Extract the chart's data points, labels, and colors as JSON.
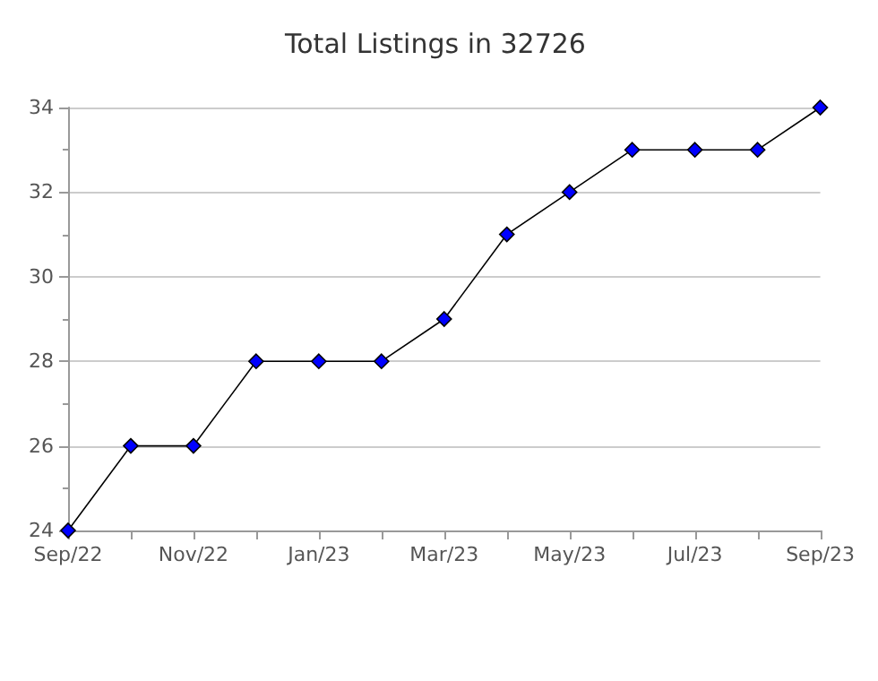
{
  "chart_data": {
    "type": "line",
    "title": "Total Listings in 32726",
    "categories": [
      "Sep/22",
      null,
      "Nov/22",
      null,
      "Jan/23",
      null,
      "Mar/23",
      null,
      "May/23",
      null,
      "Jul/23",
      null,
      "Sep/23"
    ],
    "series": [
      {
        "color": "#0000ff",
        "values": [
          24,
          26,
          26,
          28,
          28,
          28,
          29,
          31,
          32,
          33,
          33,
          33,
          34
        ]
      }
    ],
    "ylim": [
      24,
      34
    ],
    "yticks": [
      24,
      26,
      28,
      30,
      32,
      34
    ],
    "grid": "y",
    "marker": "diamond",
    "line_style": "solid"
  }
}
